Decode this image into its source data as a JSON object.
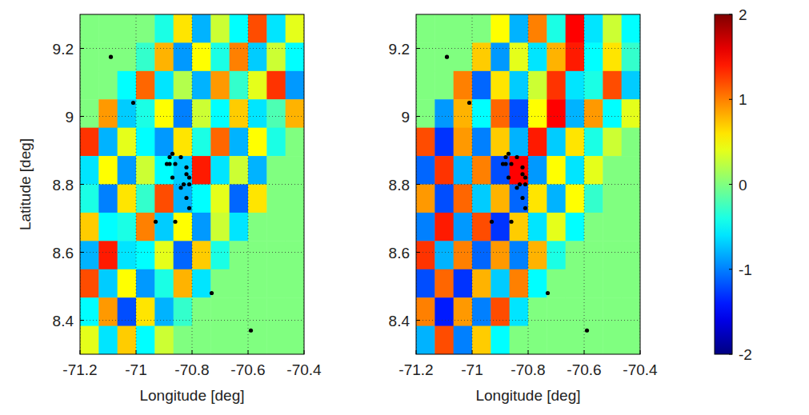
{
  "chart_data": [
    {
      "type": "heatmap",
      "xlabel": "Longitude [deg]",
      "ylabel": "Latitude [deg]",
      "xlim": [
        -71.2,
        -70.4
      ],
      "ylim": [
        8.3,
        9.3
      ],
      "xticks": [
        -71.2,
        -71,
        -70.8,
        -70.6,
        -70.4
      ],
      "yticks": [
        8.4,
        8.6,
        8.8,
        9,
        9.2
      ],
      "grid": true,
      "cells": [
        [
          0,
          0,
          0,
          0,
          -0.4,
          0.6,
          -0.8,
          0.3,
          -0.5,
          1.2,
          -0.6,
          0.4
        ],
        [
          0,
          0,
          0,
          -0.3,
          0.8,
          -0.9,
          0.5,
          -0.4,
          1.0,
          -0.7,
          0.3,
          -0.5
        ],
        [
          0,
          0,
          -0.5,
          1.1,
          -0.6,
          0.2,
          -0.8,
          0.9,
          -0.3,
          0.4,
          1.3,
          -0.9
        ],
        [
          0,
          0.9,
          -0.7,
          -0.4,
          0.5,
          -1.0,
          0.3,
          -0.5,
          0.7,
          -0.6,
          -0.2,
          0.8
        ],
        [
          1.3,
          -0.8,
          0.4,
          -0.5,
          -0.9,
          0.6,
          -0.4,
          1.1,
          -0.8,
          0.5,
          -0.4,
          0
        ],
        [
          -0.6,
          0.5,
          -0.9,
          0.3,
          -0.5,
          -0.7,
          1.4,
          -0.6,
          0.3,
          -0.8,
          0,
          0
        ],
        [
          -0.4,
          -1.0,
          0.6,
          -0.3,
          1.2,
          -0.8,
          -0.5,
          0.4,
          -1.1,
          0.6,
          0,
          0
        ],
        [
          0.7,
          -0.5,
          -0.4,
          1.0,
          -0.7,
          0.5,
          -0.9,
          0.3,
          -0.6,
          0,
          0,
          0
        ],
        [
          -0.8,
          1.4,
          -0.6,
          -0.5,
          0.4,
          -1.1,
          0.7,
          -0.4,
          0,
          0,
          0,
          0
        ],
        [
          1.2,
          -0.7,
          0.5,
          -0.9,
          -0.4,
          0.8,
          -0.6,
          0,
          0,
          0,
          0,
          0
        ],
        [
          -0.5,
          0.9,
          -1.2,
          0.6,
          -0.8,
          -0.3,
          0,
          0,
          0,
          0,
          0,
          0
        ],
        [
          0.4,
          -0.6,
          0.7,
          -0.5,
          0.3,
          0,
          0,
          0,
          0,
          0,
          0,
          0
        ]
      ],
      "series": [
        {
          "type": "scatter",
          "color": "#000000",
          "marker": "circle",
          "x": [
            -71.09,
            -71.01,
            -70.88,
            -70.87,
            -70.89,
            -70.88,
            -70.86,
            -70.87,
            -70.84,
            -70.82,
            -70.82,
            -70.81,
            -70.81,
            -70.83,
            -70.84,
            -70.82,
            -70.81,
            -70.93,
            -70.86,
            -70.73,
            -70.59
          ],
          "values": [
            9.175,
            9.04,
            8.88,
            8.89,
            8.86,
            8.86,
            8.86,
            8.82,
            8.88,
            8.85,
            8.83,
            8.82,
            8.8,
            8.8,
            8.79,
            8.76,
            8.73,
            8.69,
            8.69,
            8.48,
            8.37
          ]
        }
      ]
    },
    {
      "type": "heatmap",
      "xlabel": "Longitude [deg]",
      "xlim": [
        -71.2,
        -70.4
      ],
      "ylim": [
        8.3,
        9.3
      ],
      "xticks": [
        -71.2,
        -71,
        -70.8,
        -70.6,
        -70.4
      ],
      "yticks": [
        8.4,
        8.6,
        8.8,
        9,
        9.2
      ],
      "grid": true,
      "cells": [
        [
          0,
          0,
          0,
          0,
          0.5,
          -0.8,
          1.0,
          -0.4,
          1.5,
          -0.6,
          0.3,
          -0.5
        ],
        [
          0,
          0,
          0,
          0.7,
          -0.9,
          0.4,
          -0.6,
          0.8,
          1.4,
          -0.5,
          0.6,
          -0.3
        ],
        [
          0,
          0,
          1.0,
          -1.1,
          0.6,
          -0.7,
          0.3,
          1.3,
          -0.6,
          -0.4,
          1.2,
          -0.7
        ],
        [
          0,
          -0.9,
          0.8,
          -0.5,
          1.1,
          -1.2,
          0.5,
          1.5,
          -0.8,
          0.9,
          -0.5,
          0.4
        ],
        [
          1.2,
          -1.3,
          0.9,
          -1.0,
          0.7,
          -0.8,
          1.4,
          -0.7,
          0.6,
          -0.4,
          0.3,
          0
        ],
        [
          -1.1,
          1.3,
          -0.8,
          1.0,
          -1.2,
          1.5,
          -0.9,
          0.5,
          -0.6,
          0.4,
          0,
          0
        ],
        [
          0.9,
          -1.2,
          1.1,
          -0.7,
          0.8,
          -1.1,
          0.6,
          -0.8,
          0.5,
          -0.3,
          0,
          0
        ],
        [
          -1.0,
          1.4,
          -0.9,
          1.2,
          -1.3,
          0.7,
          -0.6,
          0.4,
          -0.5,
          0,
          0,
          0
        ],
        [
          1.3,
          -0.8,
          1.0,
          -1.1,
          0.9,
          -1.0,
          0.8,
          -0.4,
          0,
          0,
          0,
          0
        ],
        [
          -1.2,
          1.1,
          -1.3,
          0.8,
          -0.7,
          1.0,
          -0.5,
          0,
          0,
          0,
          0,
          0
        ],
        [
          1.0,
          -1.4,
          0.9,
          -1.0,
          1.2,
          -0.6,
          0,
          0,
          0,
          0,
          0,
          0
        ],
        [
          -0.8,
          1.2,
          -1.0,
          0.7,
          -0.5,
          0,
          0,
          0,
          0,
          0,
          0,
          0
        ]
      ],
      "series": [
        {
          "type": "scatter",
          "color": "#000000",
          "marker": "circle",
          "x": [
            -71.09,
            -71.01,
            -70.88,
            -70.87,
            -70.89,
            -70.88,
            -70.86,
            -70.87,
            -70.84,
            -70.82,
            -70.82,
            -70.81,
            -70.81,
            -70.83,
            -70.84,
            -70.82,
            -70.81,
            -70.93,
            -70.86,
            -70.73,
            -70.59
          ],
          "values": [
            9.175,
            9.04,
            8.88,
            8.89,
            8.86,
            8.86,
            8.86,
            8.82,
            8.88,
            8.85,
            8.83,
            8.82,
            8.8,
            8.8,
            8.79,
            8.76,
            8.73,
            8.69,
            8.69,
            8.48,
            8.37
          ]
        }
      ],
      "colorbar": {
        "range": [
          -2,
          2
        ],
        "ticks": [
          -2,
          -1,
          0,
          1,
          2
        ]
      }
    }
  ]
}
